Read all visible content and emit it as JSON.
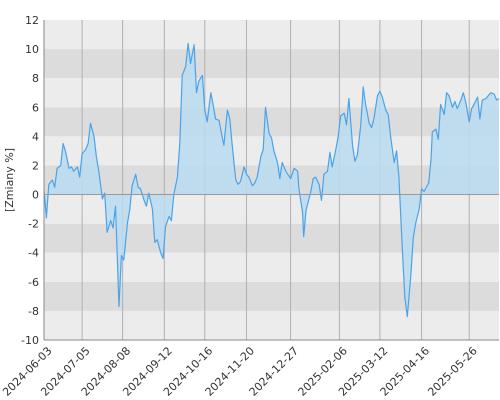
{
  "chart_data": {
    "type": "area",
    "title": "",
    "xlabel": "",
    "ylabel": "[Zmiany %]",
    "ylim": [
      -10,
      12
    ],
    "xlim": [
      "2024-06-03",
      "2025-06-20"
    ],
    "yticks": [
      -10,
      -8,
      -6,
      -4,
      -2,
      0,
      2,
      4,
      6,
      8,
      10,
      12
    ],
    "xticks": [
      "2024-06-03",
      "2024-07-05",
      "2024-08-08",
      "2024-09-12",
      "2024-10-16",
      "2024-11-20",
      "2024-12-27",
      "2025-02-06",
      "2025-03-12",
      "2025-04-16",
      "2025-05-26"
    ],
    "grid": "horizontal alternating bands and vertical lines",
    "legend": "none",
    "colors": {
      "line": "#4aa3e8",
      "fill": "#b8dcf0",
      "band_light": "#ececec",
      "band_dark": "#dcdcdc",
      "grid": "#b0b0b0",
      "zero_line": "#999999",
      "axis": "#888888"
    },
    "series": [
      {
        "name": "",
        "points": [
          [
            "2024-06-03",
            0.3
          ],
          [
            "2024-06-05",
            -1.6
          ],
          [
            "2024-06-07",
            0.7
          ],
          [
            "2024-06-10",
            1.0
          ],
          [
            "2024-06-12",
            0.5
          ],
          [
            "2024-06-14",
            1.8
          ],
          [
            "2024-06-17",
            2.0
          ],
          [
            "2024-06-19",
            3.5
          ],
          [
            "2024-06-21",
            3.0
          ],
          [
            "2024-06-24",
            1.8
          ],
          [
            "2024-06-26",
            1.9
          ],
          [
            "2024-06-28",
            1.6
          ],
          [
            "2024-07-01",
            1.9
          ],
          [
            "2024-07-03",
            1.2
          ],
          [
            "2024-07-05",
            2.8
          ],
          [
            "2024-07-08",
            3.1
          ],
          [
            "2024-07-10",
            3.5
          ],
          [
            "2024-07-12",
            4.9
          ],
          [
            "2024-07-15",
            4.0
          ],
          [
            "2024-07-17",
            2.6
          ],
          [
            "2024-07-19",
            1.6
          ],
          [
            "2024-07-22",
            -0.3
          ],
          [
            "2024-07-24",
            0.1
          ],
          [
            "2024-07-26",
            -2.6
          ],
          [
            "2024-07-29",
            -1.8
          ],
          [
            "2024-07-31",
            -2.3
          ],
          [
            "2024-08-02",
            -0.8
          ],
          [
            "2024-08-05",
            -7.7
          ],
          [
            "2024-08-07",
            -4.2
          ],
          [
            "2024-08-09",
            -4.5
          ],
          [
            "2024-08-12",
            -2.0
          ],
          [
            "2024-08-14",
            -1.0
          ],
          [
            "2024-08-16",
            0.6
          ],
          [
            "2024-08-19",
            1.4
          ],
          [
            "2024-08-21",
            0.5
          ],
          [
            "2024-08-23",
            0.4
          ],
          [
            "2024-08-26",
            -0.4
          ],
          [
            "2024-08-28",
            -0.8
          ],
          [
            "2024-08-30",
            0.1
          ],
          [
            "2024-09-02",
            -1.0
          ],
          [
            "2024-09-04",
            -3.3
          ],
          [
            "2024-09-06",
            -3.1
          ],
          [
            "2024-09-09",
            -4.0
          ],
          [
            "2024-09-11",
            -4.4
          ],
          [
            "2024-09-13",
            -2.2
          ],
          [
            "2024-09-16",
            -1.5
          ],
          [
            "2024-09-18",
            -1.8
          ],
          [
            "2024-09-20",
            0.0
          ],
          [
            "2024-09-23",
            1.2
          ],
          [
            "2024-09-25",
            3.5
          ],
          [
            "2024-09-27",
            8.2
          ],
          [
            "2024-09-30",
            8.8
          ],
          [
            "2024-10-02",
            10.4
          ],
          [
            "2024-10-04",
            9.0
          ],
          [
            "2024-10-07",
            10.3
          ],
          [
            "2024-10-09",
            7.0
          ],
          [
            "2024-10-11",
            7.8
          ],
          [
            "2024-10-14",
            8.2
          ],
          [
            "2024-10-16",
            5.8
          ],
          [
            "2024-10-18",
            5.0
          ],
          [
            "2024-10-21",
            7.0
          ],
          [
            "2024-10-23",
            6.2
          ],
          [
            "2024-10-25",
            5.2
          ],
          [
            "2024-10-28",
            5.1
          ],
          [
            "2024-10-30",
            4.2
          ],
          [
            "2024-11-01",
            3.4
          ],
          [
            "2024-11-04",
            5.8
          ],
          [
            "2024-11-06",
            5.2
          ],
          [
            "2024-11-08",
            3.4
          ],
          [
            "2024-11-11",
            1.0
          ],
          [
            "2024-11-13",
            0.7
          ],
          [
            "2024-11-15",
            0.9
          ],
          [
            "2024-11-18",
            1.9
          ],
          [
            "2024-11-20",
            1.4
          ],
          [
            "2024-11-22",
            1.2
          ],
          [
            "2024-11-25",
            0.6
          ],
          [
            "2024-11-27",
            0.8
          ],
          [
            "2024-11-29",
            1.2
          ],
          [
            "2024-12-02",
            2.6
          ],
          [
            "2024-12-04",
            3.1
          ],
          [
            "2024-12-06",
            6.0
          ],
          [
            "2024-12-09",
            4.2
          ],
          [
            "2024-12-11",
            3.9
          ],
          [
            "2024-12-13",
            3.0
          ],
          [
            "2024-12-16",
            2.2
          ],
          [
            "2024-12-18",
            1.1
          ],
          [
            "2024-12-20",
            2.2
          ],
          [
            "2024-12-23",
            1.6
          ],
          [
            "2024-12-27",
            1.1
          ],
          [
            "2024-12-30",
            1.8
          ],
          [
            "2025-01-02",
            1.6
          ],
          [
            "2025-01-03",
            0.4
          ],
          [
            "2025-01-06",
            -1.2
          ],
          [
            "2025-01-07",
            -2.9
          ],
          [
            "2025-01-09",
            -1.1
          ],
          [
            "2025-01-13",
            0.2
          ],
          [
            "2025-01-15",
            1.1
          ],
          [
            "2025-01-17",
            1.2
          ],
          [
            "2025-01-20",
            0.7
          ],
          [
            "2025-01-22",
            -0.4
          ],
          [
            "2025-01-24",
            1.4
          ],
          [
            "2025-01-27",
            1.6
          ],
          [
            "2025-01-29",
            2.9
          ],
          [
            "2025-01-31",
            1.9
          ],
          [
            "2025-02-03",
            3.1
          ],
          [
            "2025-02-05",
            4.0
          ],
          [
            "2025-02-07",
            5.4
          ],
          [
            "2025-02-10",
            5.6
          ],
          [
            "2025-02-12",
            4.8
          ],
          [
            "2025-02-14",
            6.6
          ],
          [
            "2025-02-17",
            3.4
          ],
          [
            "2025-02-19",
            2.3
          ],
          [
            "2025-02-21",
            2.7
          ],
          [
            "2025-02-24",
            4.8
          ],
          [
            "2025-02-26",
            7.4
          ],
          [
            "2025-02-28",
            6.2
          ],
          [
            "2025-03-03",
            4.9
          ],
          [
            "2025-03-05",
            4.6
          ],
          [
            "2025-03-07",
            5.2
          ],
          [
            "2025-03-10",
            6.8
          ],
          [
            "2025-03-12",
            7.1
          ],
          [
            "2025-03-14",
            6.7
          ],
          [
            "2025-03-17",
            5.8
          ],
          [
            "2025-03-19",
            5.5
          ],
          [
            "2025-03-21",
            4.0
          ],
          [
            "2025-03-24",
            2.2
          ],
          [
            "2025-03-26",
            3.0
          ],
          [
            "2025-03-28",
            1.2
          ],
          [
            "2025-03-31",
            -4.0
          ],
          [
            "2025-04-02",
            -7.1
          ],
          [
            "2025-04-04",
            -8.4
          ],
          [
            "2025-04-07",
            -5.5
          ],
          [
            "2025-04-09",
            -3.0
          ],
          [
            "2025-04-11",
            -2.0
          ],
          [
            "2025-04-14",
            -1.0
          ],
          [
            "2025-04-16",
            0.4
          ],
          [
            "2025-04-18",
            0.2
          ],
          [
            "2025-04-22",
            0.8
          ],
          [
            "2025-04-24",
            2.5
          ],
          [
            "2025-04-25",
            4.3
          ],
          [
            "2025-04-28",
            4.5
          ],
          [
            "2025-04-30",
            3.8
          ],
          [
            "2025-05-02",
            6.2
          ],
          [
            "2025-05-05",
            5.5
          ],
          [
            "2025-05-07",
            7.0
          ],
          [
            "2025-05-09",
            6.8
          ],
          [
            "2025-05-12",
            6.0
          ],
          [
            "2025-05-14",
            6.4
          ],
          [
            "2025-05-16",
            5.9
          ],
          [
            "2025-05-19",
            6.5
          ],
          [
            "2025-05-21",
            7.0
          ],
          [
            "2025-05-23",
            6.4
          ],
          [
            "2025-05-26",
            5.0
          ],
          [
            "2025-05-28",
            5.9
          ],
          [
            "2025-05-30",
            6.2
          ],
          [
            "2025-06-02",
            6.7
          ],
          [
            "2025-06-04",
            5.2
          ],
          [
            "2025-06-06",
            6.5
          ],
          [
            "2025-06-09",
            6.6
          ],
          [
            "2025-06-11",
            6.8
          ],
          [
            "2025-06-13",
            7.0
          ],
          [
            "2025-06-16",
            6.9
          ],
          [
            "2025-06-18",
            6.5
          ],
          [
            "2025-06-20",
            6.6
          ]
        ]
      }
    ]
  }
}
